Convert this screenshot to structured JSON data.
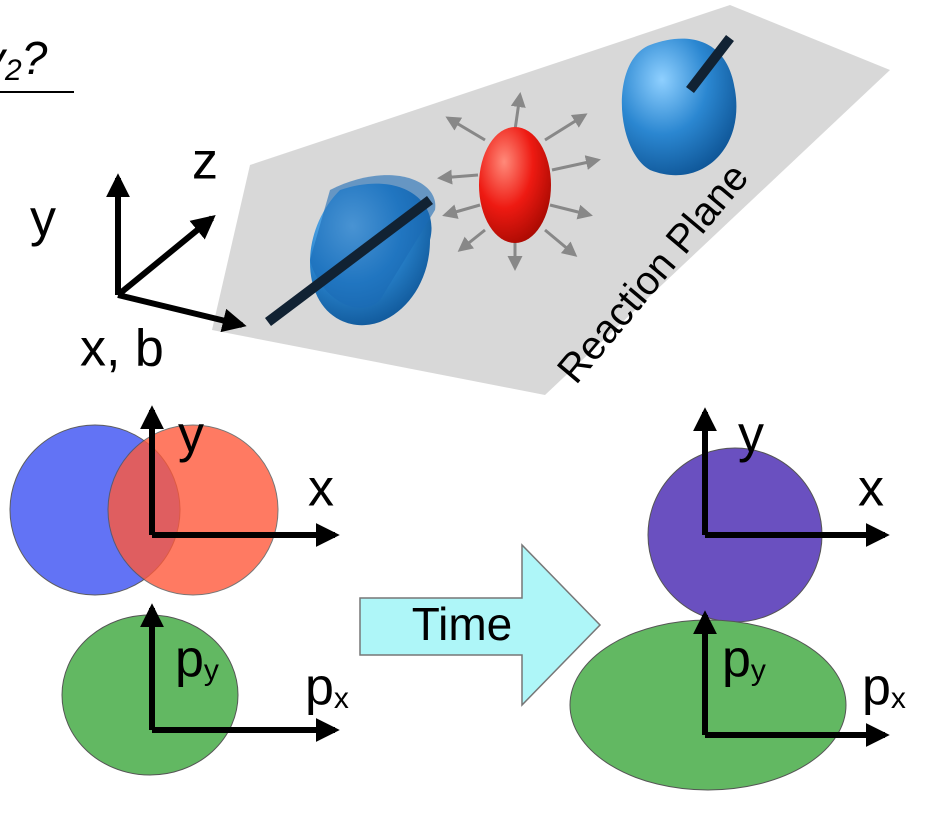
{
  "title": {
    "main": "v",
    "sub": "2",
    "suffix": "?"
  },
  "axes3d": {
    "z": "z",
    "y": "y",
    "x": "x, b"
  },
  "plane_label": "Reaction Plane",
  "left": {
    "coord": {
      "y": "y",
      "x": "x"
    },
    "momentum": {
      "py": {
        "base": "p",
        "sub": "y"
      },
      "px": {
        "base": "p",
        "sub": "x"
      }
    }
  },
  "arrow_label": "Time",
  "right": {
    "coord": {
      "y": "y",
      "x": "x"
    },
    "momentum": {
      "py": {
        "base": "p",
        "sub": "y"
      },
      "px": {
        "base": "p",
        "sub": "x"
      }
    }
  }
}
